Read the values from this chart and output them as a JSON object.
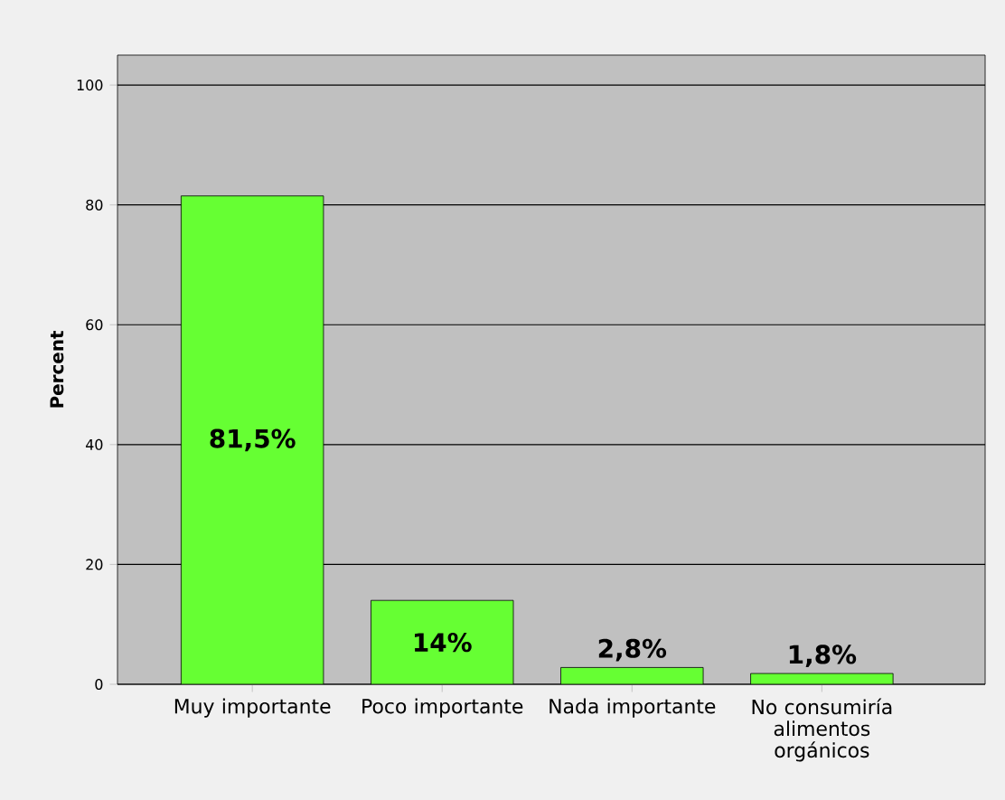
{
  "chart_data": {
    "type": "bar",
    "ylabel": "Percent",
    "categories": [
      "Muy importante",
      "Poco importante",
      "Nada importante",
      "No consumiría alimentos orgánicos"
    ],
    "values": [
      81.5,
      14,
      2.8,
      1.8
    ],
    "value_labels": [
      "81,5%",
      "14%",
      "2,8%",
      "1,8%"
    ],
    "color": "#66ff33",
    "ylim": [
      0,
      105
    ],
    "yticks": [
      0,
      20,
      40,
      60,
      80,
      100
    ],
    "grid": "y"
  }
}
